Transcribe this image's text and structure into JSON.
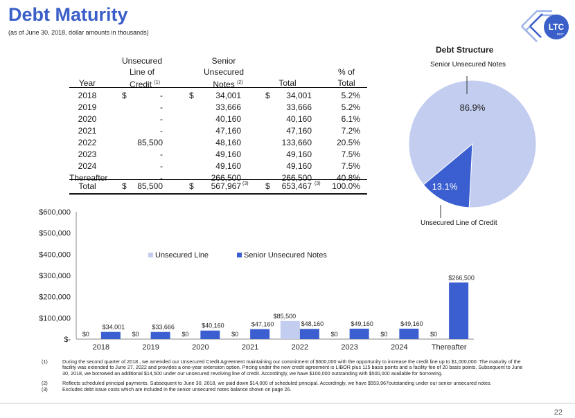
{
  "title": "Debt Maturity",
  "subtitle": "(as of June 30, 2018, dollar amounts in thousands)",
  "logo": {
    "text": "LTC",
    "subtext": "REIT",
    "color": "#3b5fc8"
  },
  "table": {
    "headers": {
      "year": "Year",
      "line1_a": "Unsecured",
      "line1_b": "Line of",
      "line1_c": "Credit",
      "line1_note": "(1)",
      "notes_a": "Senior",
      "notes_b": "Unsecured",
      "notes_c": "Notes",
      "notes_note": "(2)",
      "total": "Total",
      "pct_a": "% of",
      "pct_b": "Total"
    },
    "rows": [
      {
        "year": "2018",
        "loc_dollar": "$",
        "loc": "-",
        "notes_dollar": "$",
        "notes": "34,001",
        "total_dollar": "$",
        "total": "34,001",
        "pct": "5.2%"
      },
      {
        "year": "2019",
        "loc_dollar": "",
        "loc": "-",
        "notes_dollar": "",
        "notes": "33,666",
        "total_dollar": "",
        "total": "33,666",
        "pct": "5.2%"
      },
      {
        "year": "2020",
        "loc_dollar": "",
        "loc": "-",
        "notes_dollar": "",
        "notes": "40,160",
        "total_dollar": "",
        "total": "40,160",
        "pct": "6.1%"
      },
      {
        "year": "2021",
        "loc_dollar": "",
        "loc": "-",
        "notes_dollar": "",
        "notes": "47,160",
        "total_dollar": "",
        "total": "47,160",
        "pct": "7.2%"
      },
      {
        "year": "2022",
        "loc_dollar": "",
        "loc": "85,500",
        "notes_dollar": "",
        "notes": "48,160",
        "total_dollar": "",
        "total": "133,660",
        "pct": "20.5%"
      },
      {
        "year": "2023",
        "loc_dollar": "",
        "loc": "-",
        "notes_dollar": "",
        "notes": "49,160",
        "total_dollar": "",
        "total": "49,160",
        "pct": "7.5%"
      },
      {
        "year": "2024",
        "loc_dollar": "",
        "loc": "-",
        "notes_dollar": "",
        "notes": "49,160",
        "total_dollar": "",
        "total": "49,160",
        "pct": "7.5%"
      },
      {
        "year": "Thereafter",
        "loc_dollar": "",
        "loc": "-",
        "notes_dollar": "",
        "notes": "266,500",
        "total_dollar": "",
        "total": "266,500",
        "pct": "40.8%"
      }
    ],
    "total_row": {
      "year": "Total",
      "loc_dollar": "$",
      "loc": "85,500",
      "notes_dollar": "$",
      "notes": "567,967",
      "notes_note": "(3)",
      "total_dollar": "$",
      "total": "653,467",
      "total_note": "(3)",
      "pct": "100.0%"
    }
  },
  "pie": {
    "title": "Debt Structure",
    "label_top": "Senior Unsecured Notes",
    "label_bottom": "Unsecured Line of Credit",
    "slices": [
      {
        "name": "Senior Unsecured Notes",
        "pct_label": "86.9%",
        "value": 86.9,
        "color": "#c3cdf0"
      },
      {
        "name": "Unsecured Line of Credit",
        "pct_label": "13.1%",
        "value": 13.1,
        "color": "#3b5fd0"
      }
    ]
  },
  "chart_data": {
    "type": "bar",
    "categories": [
      "2018",
      "2019",
      "2020",
      "2021",
      "2022",
      "2023",
      "2024",
      "Thereafter"
    ],
    "series": [
      {
        "name": "Unsecured Line",
        "color": "#c3cdf0",
        "values": [
          0,
          0,
          0,
          0,
          85500,
          0,
          0,
          0
        ],
        "labels": [
          "$0",
          "$0",
          "$0",
          "$0",
          "$85,500",
          "$0",
          "$0",
          "$0"
        ]
      },
      {
        "name": "Senior Unsecured Notes",
        "color": "#3b5fd0",
        "values": [
          34001,
          33666,
          40160,
          47160,
          48160,
          49160,
          49160,
          266500
        ],
        "labels": [
          "$34,001",
          "$33,666",
          "$40,160",
          "$47,160",
          "$48,160",
          "$49,160",
          "$49,160",
          "$266,500"
        ]
      }
    ],
    "ylim": [
      0,
      600000
    ],
    "yticks": [
      0,
      100000,
      200000,
      300000,
      400000,
      500000,
      600000
    ],
    "ytick_labels": [
      "$-",
      "$100,000",
      "$200,000",
      "$300,000",
      "$400,000",
      "$500,000",
      "$600,000"
    ],
    "legend": "top-center",
    "grid": false
  },
  "footnotes": [
    {
      "num": "(1)",
      "text": "During the second quarter of 2018 , we amended our Unsecured Credit Agreement maintaining our commitment of $600,000 with the opportunity to increase the credit line up to $1,000,000.  The maturity of the facility was extended to June 27, 2022 and provides a one-year extension option.  Pricing under the new credit  agreement is LIBOR plus 115 basis points and a facility fee of 20 basis points. Subsequent to June 30, 2018, we borrowed an additional $14,500 under our unsecured revolving line of credit.  Accordingly, we have $100,000 outstanding with $500,000 available for borrowing."
    },
    {
      "num": "(2)",
      "text": "Reflects scheduled principal payments. Subsequent to June 30, 2018, we paid down $14,000 of scheduled principal.  Accordingly, we have $553,967outstanding under our senior unsecured notes."
    },
    {
      "num": "(3)",
      "text": "Excludes debt issue costs which are included in the senior unsecured notes balance shown on page 26."
    }
  ],
  "page_number": "22"
}
